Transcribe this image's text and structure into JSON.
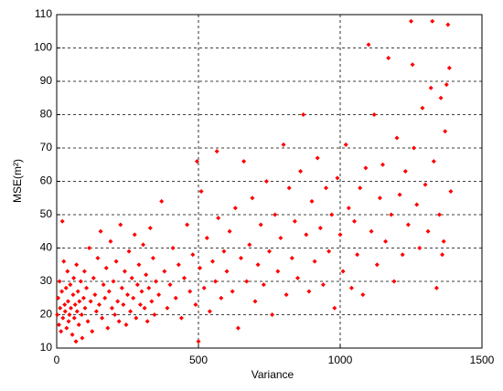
{
  "chart_data": {
    "type": "scatter",
    "x_label": "Variance",
    "y_label": "MSE(m²)",
    "xlim": [
      0,
      1500
    ],
    "ylim": [
      10,
      110
    ],
    "xticks": [
      0,
      500,
      1000,
      1500
    ],
    "yticks": [
      10,
      20,
      30,
      40,
      50,
      60,
      70,
      80,
      90,
      100,
      110
    ],
    "grid": true,
    "series": [
      {
        "color": "#ff0000",
        "x": [
          2,
          5,
          8,
          10,
          12,
          15,
          18,
          20,
          22,
          25,
          28,
          30,
          33,
          35,
          38,
          40,
          42,
          45,
          48,
          50,
          55,
          58,
          60,
          62,
          65,
          68,
          70,
          72,
          75,
          78,
          80,
          85,
          88,
          90,
          95,
          98,
          100,
          105,
          110,
          115,
          120,
          125,
          130,
          135,
          140,
          145,
          150,
          155,
          160,
          165,
          170,
          175,
          180,
          185,
          190,
          195,
          200,
          205,
          210,
          215,
          220,
          225,
          230,
          235,
          240,
          245,
          250,
          255,
          260,
          265,
          270,
          275,
          280,
          285,
          290,
          295,
          300,
          305,
          310,
          315,
          320,
          325,
          330,
          335,
          340,
          345,
          350,
          360,
          370,
          380,
          390,
          400,
          410,
          420,
          430,
          440,
          450,
          460,
          470,
          480,
          490,
          495,
          500,
          505,
          510,
          520,
          530,
          540,
          550,
          560,
          565,
          570,
          580,
          590,
          600,
          610,
          620,
          630,
          640,
          650,
          660,
          670,
          680,
          690,
          700,
          710,
          720,
          730,
          740,
          750,
          760,
          770,
          780,
          790,
          800,
          810,
          820,
          830,
          840,
          850,
          860,
          870,
          880,
          890,
          900,
          910,
          920,
          930,
          940,
          950,
          960,
          970,
          980,
          990,
          1000,
          1010,
          1020,
          1030,
          1040,
          1050,
          1060,
          1070,
          1080,
          1090,
          1100,
          1110,
          1120,
          1130,
          1140,
          1150,
          1160,
          1170,
          1180,
          1190,
          1200,
          1210,
          1220,
          1230,
          1240,
          1250,
          1255,
          1260,
          1270,
          1280,
          1290,
          1300,
          1310,
          1320,
          1325,
          1330,
          1340,
          1350,
          1355,
          1360,
          1370,
          1375,
          1380,
          1385,
          1390,
          1365
        ],
        "values": [
          20,
          25,
          17,
          30,
          22,
          15,
          27,
          48,
          19,
          36,
          23,
          21,
          28,
          16,
          33,
          24,
          18,
          20,
          29,
          22,
          14,
          26,
          31,
          19,
          23,
          12,
          35,
          21,
          27,
          17,
          24,
          30,
          20,
          13,
          25,
          33,
          22,
          28,
          18,
          40,
          24,
          15,
          31,
          26,
          21,
          37,
          23,
          45,
          19,
          29,
          25,
          34,
          16,
          27,
          42,
          22,
          30,
          20,
          36,
          24,
          18,
          47,
          28,
          23,
          33,
          17,
          26,
          39,
          21,
          31,
          25,
          44,
          19,
          29,
          35,
          23,
          27,
          41,
          22,
          32,
          18,
          28,
          46,
          24,
          37,
          20,
          30,
          26,
          54,
          33,
          22,
          29,
          40,
          25,
          35,
          19,
          31,
          47,
          27,
          38,
          23,
          66,
          12,
          34,
          57,
          28,
          43,
          21,
          36,
          30,
          69,
          49,
          25,
          39,
          33,
          45,
          27,
          52,
          16,
          37,
          66,
          30,
          41,
          55,
          24,
          35,
          47,
          29,
          60,
          39,
          20,
          50,
          33,
          43,
          71,
          26,
          58,
          37,
          48,
          31,
          63,
          80,
          44,
          27,
          54,
          36,
          67,
          46,
          29,
          58,
          39,
          50,
          22,
          61,
          44,
          33,
          71,
          52,
          28,
          48,
          38,
          58,
          26,
          64,
          101,
          45,
          80,
          35,
          55,
          65,
          42,
          97,
          50,
          30,
          73,
          56,
          38,
          63,
          47,
          108,
          95,
          70,
          53,
          40,
          82,
          59,
          45,
          88,
          108,
          66,
          28,
          50,
          85,
          38,
          75,
          89,
          107,
          94,
          57,
          42
        ]
      }
    ]
  }
}
